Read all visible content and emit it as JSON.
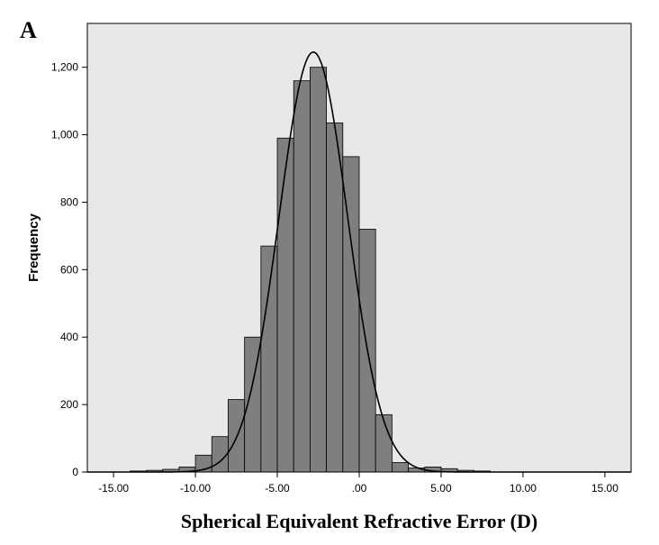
{
  "panel_label": "A",
  "chart_data": {
    "type": "bar",
    "title": "",
    "xlabel": "Spherical Equivalent Refractive Error (D)",
    "ylabel": "Frequency",
    "xlim": [
      -16.6,
      16.6
    ],
    "ylim": [
      0,
      1330
    ],
    "bin_width": 1,
    "x_ticks": [
      -15,
      -10,
      -5,
      0,
      5,
      10,
      15
    ],
    "x_tick_labels": [
      "-15.00",
      "-10.00",
      "-5.00",
      ".00",
      "5.00",
      "10.00",
      "15.00"
    ],
    "y_ticks": [
      0,
      200,
      400,
      600,
      800,
      1000,
      1200
    ],
    "y_tick_labels": [
      "0",
      "200",
      "400",
      "600",
      "800",
      "1,000",
      "1,200"
    ],
    "bins": [
      {
        "x": -13.5,
        "value": 3
      },
      {
        "x": -12.5,
        "value": 5
      },
      {
        "x": -11.5,
        "value": 8
      },
      {
        "x": -10.5,
        "value": 15
      },
      {
        "x": -9.5,
        "value": 50
      },
      {
        "x": -8.5,
        "value": 105
      },
      {
        "x": -7.5,
        "value": 215
      },
      {
        "x": -6.5,
        "value": 400
      },
      {
        "x": -5.5,
        "value": 670
      },
      {
        "x": -4.5,
        "value": 990
      },
      {
        "x": -3.5,
        "value": 1160
      },
      {
        "x": -2.5,
        "value": 1200
      },
      {
        "x": -1.5,
        "value": 1035
      },
      {
        "x": -0.5,
        "value": 935
      },
      {
        "x": 0.5,
        "value": 720
      },
      {
        "x": 1.5,
        "value": 170
      },
      {
        "x": 2.5,
        "value": 28
      },
      {
        "x": 3.5,
        "value": 12
      },
      {
        "x": 4.5,
        "value": 15
      },
      {
        "x": 5.5,
        "value": 10
      },
      {
        "x": 6.5,
        "value": 5
      },
      {
        "x": 7.5,
        "value": 3
      }
    ],
    "normal_curve": {
      "mean": -2.8,
      "sd": 2.1,
      "peak": 1245
    },
    "grid": false,
    "colors": {
      "plot_background": "#e8e8e8",
      "bar_fill": "#7f7f7f",
      "bar_edge": "#000000",
      "curve": "#000000"
    }
  }
}
